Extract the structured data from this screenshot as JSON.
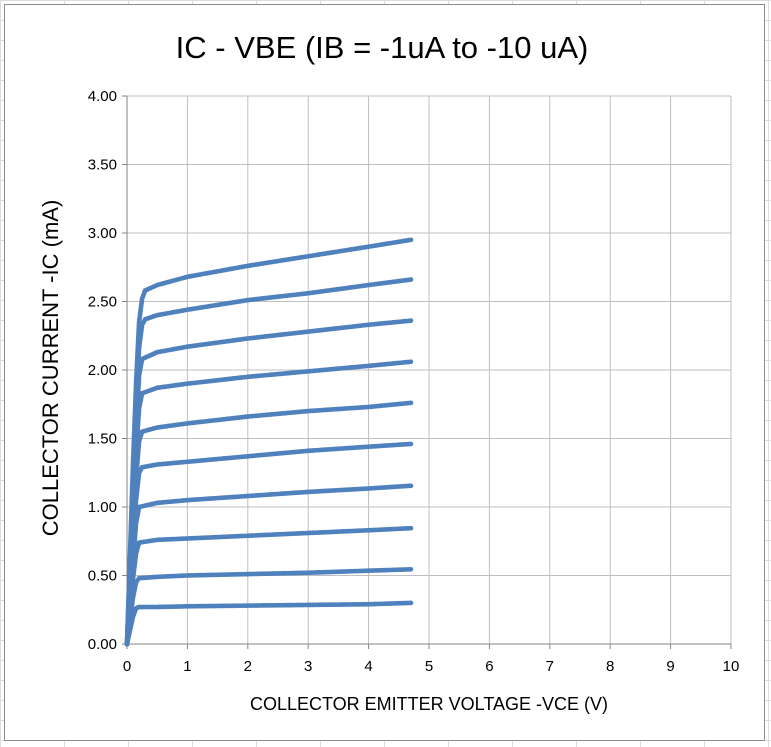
{
  "chart_data": {
    "type": "scatter",
    "title": "IC - VBE (IB = -1uA to -10 uA)",
    "xlabel": "COLLECTOR EMITTER VOLTAGE   -VCE   (V)",
    "ylabel": "COLLECTOR CURRENT   -IC   (mA)",
    "xlim": [
      0,
      10
    ],
    "ylim": [
      0,
      4
    ],
    "x_ticks": [
      "0",
      "1",
      "2",
      "3",
      "4",
      "5",
      "6",
      "7",
      "8",
      "9",
      "10"
    ],
    "y_ticks": [
      "0.00",
      "0.50",
      "1.00",
      "1.50",
      "2.00",
      "2.50",
      "3.00",
      "3.50",
      "4.00"
    ],
    "grid": true,
    "legend": "none",
    "color": "#4f81bd",
    "series": [
      {
        "values": [
          [
            0.0,
            0.0
          ],
          [
            0.05,
            0.1
          ],
          [
            0.1,
            0.2
          ],
          [
            0.15,
            0.26
          ],
          [
            0.2,
            0.27
          ],
          [
            0.5,
            0.27
          ],
          [
            1.0,
            0.275
          ],
          [
            2.0,
            0.28
          ],
          [
            3.0,
            0.285
          ],
          [
            4.0,
            0.29
          ],
          [
            4.7,
            0.3
          ]
        ]
      },
      {
        "values": [
          [
            0.0,
            0.0
          ],
          [
            0.05,
            0.18
          ],
          [
            0.1,
            0.34
          ],
          [
            0.15,
            0.45
          ],
          [
            0.2,
            0.48
          ],
          [
            0.5,
            0.49
          ],
          [
            1.0,
            0.5
          ],
          [
            2.0,
            0.51
          ],
          [
            3.0,
            0.52
          ],
          [
            4.0,
            0.535
          ],
          [
            4.7,
            0.545
          ]
        ]
      },
      {
        "values": [
          [
            0.0,
            0.0
          ],
          [
            0.05,
            0.24
          ],
          [
            0.1,
            0.48
          ],
          [
            0.15,
            0.66
          ],
          [
            0.2,
            0.74
          ],
          [
            0.5,
            0.76
          ],
          [
            1.0,
            0.77
          ],
          [
            2.0,
            0.79
          ],
          [
            3.0,
            0.81
          ],
          [
            4.0,
            0.83
          ],
          [
            4.7,
            0.845
          ]
        ]
      },
      {
        "values": [
          [
            0.0,
            0.0
          ],
          [
            0.05,
            0.3
          ],
          [
            0.1,
            0.6
          ],
          [
            0.15,
            0.88
          ],
          [
            0.2,
            1.0
          ],
          [
            0.5,
            1.03
          ],
          [
            1.0,
            1.05
          ],
          [
            2.0,
            1.08
          ],
          [
            3.0,
            1.11
          ],
          [
            4.0,
            1.135
          ],
          [
            4.7,
            1.155
          ]
        ]
      },
      {
        "values": [
          [
            0.0,
            0.0
          ],
          [
            0.05,
            0.36
          ],
          [
            0.1,
            0.72
          ],
          [
            0.15,
            1.05
          ],
          [
            0.2,
            1.25
          ],
          [
            0.25,
            1.29
          ],
          [
            0.5,
            1.31
          ],
          [
            1.0,
            1.33
          ],
          [
            2.0,
            1.37
          ],
          [
            3.0,
            1.41
          ],
          [
            4.0,
            1.44
          ],
          [
            4.7,
            1.46
          ]
        ]
      },
      {
        "values": [
          [
            0.0,
            0.0
          ],
          [
            0.05,
            0.42
          ],
          [
            0.1,
            0.84
          ],
          [
            0.15,
            1.2
          ],
          [
            0.2,
            1.48
          ],
          [
            0.25,
            1.55
          ],
          [
            0.5,
            1.58
          ],
          [
            1.0,
            1.61
          ],
          [
            2.0,
            1.66
          ],
          [
            3.0,
            1.7
          ],
          [
            4.0,
            1.73
          ],
          [
            4.7,
            1.76
          ]
        ]
      },
      {
        "values": [
          [
            0.0,
            0.0
          ],
          [
            0.05,
            0.48
          ],
          [
            0.1,
            0.96
          ],
          [
            0.15,
            1.38
          ],
          [
            0.2,
            1.72
          ],
          [
            0.25,
            1.83
          ],
          [
            0.5,
            1.87
          ],
          [
            1.0,
            1.9
          ],
          [
            2.0,
            1.95
          ],
          [
            3.0,
            1.99
          ],
          [
            4.0,
            2.03
          ],
          [
            4.7,
            2.06
          ]
        ]
      },
      {
        "values": [
          [
            0.0,
            0.0
          ],
          [
            0.05,
            0.54
          ],
          [
            0.1,
            1.08
          ],
          [
            0.15,
            1.55
          ],
          [
            0.2,
            1.96
          ],
          [
            0.25,
            2.08
          ],
          [
            0.5,
            2.13
          ],
          [
            1.0,
            2.17
          ],
          [
            2.0,
            2.23
          ],
          [
            3.0,
            2.28
          ],
          [
            4.0,
            2.33
          ],
          [
            4.7,
            2.36
          ]
        ]
      },
      {
        "values": [
          [
            0.0,
            0.0
          ],
          [
            0.05,
            0.6
          ],
          [
            0.1,
            1.2
          ],
          [
            0.15,
            1.72
          ],
          [
            0.2,
            2.16
          ],
          [
            0.25,
            2.33
          ],
          [
            0.3,
            2.37
          ],
          [
            0.5,
            2.4
          ],
          [
            1.0,
            2.44
          ],
          [
            2.0,
            2.51
          ],
          [
            3.0,
            2.56
          ],
          [
            4.0,
            2.62
          ],
          [
            4.7,
            2.66
          ]
        ]
      },
      {
        "values": [
          [
            0.0,
            0.0
          ],
          [
            0.05,
            0.66
          ],
          [
            0.1,
            1.32
          ],
          [
            0.15,
            1.9
          ],
          [
            0.2,
            2.35
          ],
          [
            0.25,
            2.52
          ],
          [
            0.3,
            2.58
          ],
          [
            0.5,
            2.62
          ],
          [
            1.0,
            2.68
          ],
          [
            2.0,
            2.76
          ],
          [
            3.0,
            2.83
          ],
          [
            4.0,
            2.9
          ],
          [
            4.7,
            2.95
          ]
        ]
      }
    ]
  }
}
